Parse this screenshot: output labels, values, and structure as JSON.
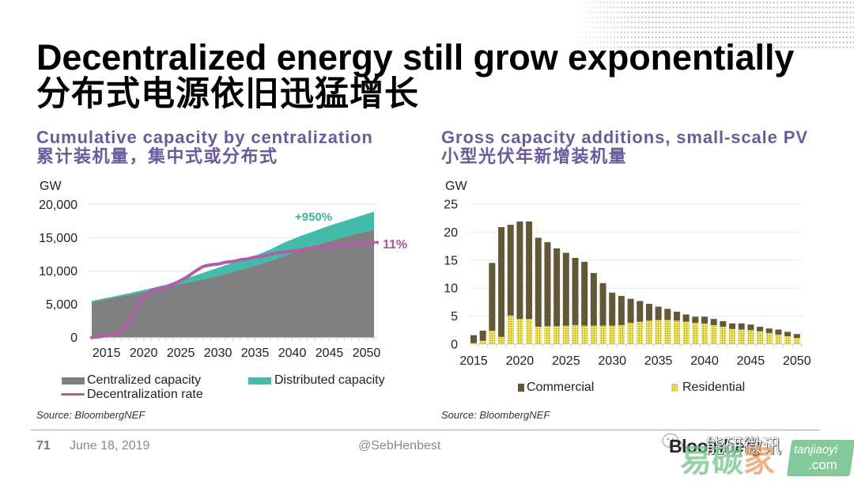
{
  "slide": {
    "title": "Decentralized energy still grow exponentially",
    "title_cn": "分布式电源依旧迅猛增长",
    "page_number": "71",
    "date": "June 18, 2019",
    "handle": "@SebHenbest"
  },
  "colors": {
    "title_accent": "#6b5b9a",
    "centralized": "#807f81",
    "distributed": "#41bcab",
    "decentralization_rate": "#b35ca7",
    "commercial": "#756a3c",
    "residential": "#f1e65b"
  },
  "watermarks": {
    "logo": "Bloomberg",
    "account": "能研微讯",
    "site_cn_part1": "易碳",
    "site_cn_part2": "家",
    "site_domain": "tanjiaoyi",
    "site_tld": ".com"
  },
  "chart_data": [
    {
      "type": "area",
      "stacked": true,
      "title": "Cumulative capacity by centralization",
      "subtitle": "累计装机量，集中式或分布式",
      "ylabel": "GW",
      "xlabel": "",
      "ylim": [
        0,
        20000
      ],
      "yticks": [
        0,
        5000,
        10000,
        15000,
        20000
      ],
      "ytick_labels": [
        "0",
        "5,000",
        "10,000",
        "15,000",
        "20,000"
      ],
      "xlim": [
        2012,
        2050
      ],
      "xticks": [
        2015,
        2020,
        2025,
        2030,
        2035,
        2040,
        2045,
        2050
      ],
      "xtick_labels": [
        "2015",
        "2020",
        "2025",
        "2030",
        "2035",
        "2040",
        "2045",
        "2050"
      ],
      "grid": true,
      "x": [
        2012,
        2013,
        2014,
        2015,
        2016,
        2017,
        2018,
        2019,
        2020,
        2021,
        2022,
        2023,
        2024,
        2025,
        2026,
        2027,
        2028,
        2029,
        2030,
        2031,
        2032,
        2033,
        2034,
        2035,
        2036,
        2037,
        2038,
        2039,
        2040,
        2041,
        2042,
        2043,
        2044,
        2045,
        2046,
        2047,
        2048,
        2049,
        2050
      ],
      "series": [
        {
          "name": "Centralized capacity",
          "kind": "stacked-area",
          "color": "#807f81",
          "values": [
            5300,
            5525,
            5750,
            5975,
            6200,
            6425,
            6650,
            6875,
            7100,
            7350,
            7600,
            7825,
            8050,
            8275,
            8500,
            8750,
            9000,
            9275,
            9550,
            9850,
            10150,
            10475,
            10800,
            11150,
            11500,
            11900,
            12300,
            12700,
            13100,
            13450,
            13800,
            14150,
            14500,
            14800,
            15100,
            15400,
            15700,
            15950,
            16200
          ]
        },
        {
          "name": "Distributed capacity",
          "kind": "stacked-area",
          "color": "#41bcab",
          "values": [
            200,
            200,
            200,
            200,
            200,
            225,
            250,
            275,
            300,
            325,
            350,
            450,
            550,
            700,
            850,
            975,
            1100,
            1200,
            1300,
            1350,
            1400,
            1450,
            1500,
            1600,
            1700,
            1850,
            2000,
            2050,
            2100,
            2150,
            2200,
            2250,
            2300,
            2350,
            2400,
            2450,
            2500,
            2600,
            2700
          ]
        },
        {
          "name": "Decentralization rate",
          "kind": "line",
          "axis": "secondary",
          "unit": "%",
          "color": "#b35ca7",
          "values": [
            0,
            0.1,
            0.25,
            0.4,
            0.8,
            1.8,
            3.4,
            4.7,
            5.4,
            5.7,
            5.8,
            6.2,
            6.6,
            7.1,
            7.7,
            8.2,
            8.4,
            8.5,
            8.7,
            8.8,
            9.0,
            9.1,
            9.3,
            9.4,
            9.6,
            9.8,
            9.9,
            10.0,
            10.1,
            10.3,
            10.4,
            10.5,
            10.6,
            10.7,
            10.8,
            10.8,
            10.9,
            10.9,
            11.0
          ]
        }
      ],
      "y2lim": [
        0,
        15.4
      ],
      "annotations": [
        {
          "text": "+950%",
          "series": "Distributed capacity",
          "color": "#3db3a0"
        },
        {
          "text": "11%",
          "series": "Decentralization rate",
          "color": "#b0529f"
        }
      ],
      "legend": {
        "placement": "bottom"
      },
      "source": "Source: BloombergNEF"
    },
    {
      "type": "bar",
      "stacked": true,
      "title": "Gross capacity additions, small-scale PV",
      "subtitle": "小型光伏年新增装机量",
      "ylabel": "GW",
      "xlabel": "",
      "ylim": [
        0,
        25
      ],
      "yticks": [
        0,
        5,
        10,
        15,
        20,
        25
      ],
      "ytick_labels": [
        "0",
        "5",
        "10",
        "15",
        "20",
        "25"
      ],
      "xticks": [
        2015,
        2020,
        2025,
        2030,
        2035,
        2040,
        2045,
        2050
      ],
      "xtick_labels": [
        "2015",
        "2020",
        "2025",
        "2030",
        "2035",
        "2040",
        "2045",
        "2050"
      ],
      "grid": true,
      "stack_bottom": "Residential",
      "x": [
        2015,
        2016,
        2017,
        2018,
        2019,
        2020,
        2021,
        2022,
        2023,
        2024,
        2025,
        2026,
        2027,
        2028,
        2029,
        2030,
        2031,
        2032,
        2033,
        2034,
        2035,
        2036,
        2037,
        2038,
        2039,
        2040,
        2041,
        2042,
        2043,
        2044,
        2045,
        2046,
        2047,
        2048,
        2049,
        2050
      ],
      "series": [
        {
          "name": "Commercial",
          "color": "#756a3c",
          "values": [
            1.4,
            1.8,
            12.1,
            19.6,
            16.2,
            17.4,
            17.4,
            15.9,
            15.0,
            13.9,
            13.0,
            12.0,
            11.4,
            9.4,
            7.6,
            5.9,
            5.2,
            4.3,
            3.7,
            3.0,
            2.4,
            2.0,
            1.6,
            1.3,
            1.1,
            1.2,
            1.1,
            1.0,
            1.0,
            1.1,
            1.0,
            0.8,
            0.8,
            0.9,
            0.8,
            0.7
          ]
        },
        {
          "name": "Residential",
          "color": "#f1e65b",
          "values": [
            0.2,
            0.6,
            2.4,
            1.3,
            5.1,
            4.5,
            4.5,
            3.1,
            3.2,
            3.2,
            3.3,
            3.4,
            3.3,
            3.3,
            3.3,
            3.3,
            3.4,
            3.8,
            4.0,
            4.2,
            4.3,
            4.3,
            4.2,
            4.0,
            3.8,
            3.7,
            3.4,
            3.1,
            2.7,
            2.6,
            2.5,
            2.3,
            2.0,
            1.7,
            1.4,
            1.1
          ]
        }
      ],
      "legend": {
        "placement": "bottom"
      },
      "source": "Source: BloombergNEF"
    }
  ]
}
